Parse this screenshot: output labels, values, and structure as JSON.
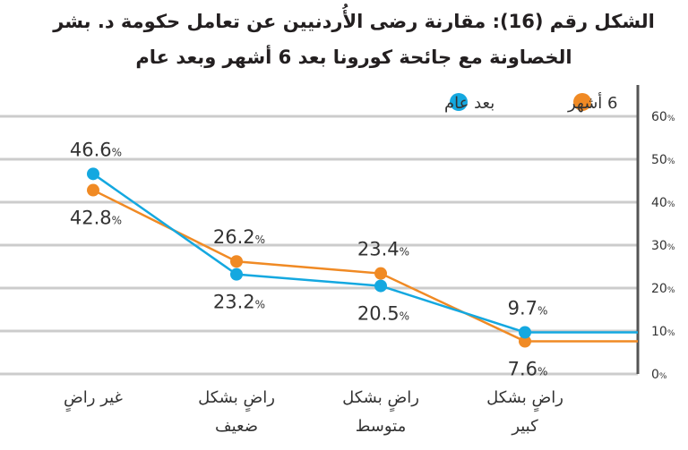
{
  "chart_data": {
    "type": "line",
    "title": [
      "الشكل رقم (16): مقارنة رضى الأُردنيين عن تعامل حكومة د. بشر",
      "الخصاونة مع جائحة كورونا بعد 6 أشهر وبعد عام"
    ],
    "categories": [
      [
        "غير راضٍ"
      ],
      [
        "راضٍ بشكل",
        "ضعيف"
      ],
      [
        "راضٍ بشكل",
        "متوسط"
      ],
      [
        "راضٍ بشكل",
        "كبير"
      ]
    ],
    "series": [
      {
        "name": "6 أشهر",
        "color": "#f08a24",
        "values": [
          42.8,
          26.2,
          23.4,
          7.6
        ]
      },
      {
        "name": "بعد عام",
        "color": "#14a8e0",
        "values": [
          46.6,
          23.2,
          20.5,
          9.7
        ]
      }
    ],
    "value_labels": {
      "6 أشهر": [
        "42.8",
        "26.2",
        "23.4",
        "7.6"
      ],
      "بعد عام": [
        "46.6",
        "23.2",
        "20.5",
        "9.7"
      ]
    },
    "unit": "%",
    "yticks": [
      "0",
      "10",
      "20",
      "30",
      "40",
      "50",
      "60"
    ],
    "ylim": [
      0,
      60
    ],
    "y_axis_side": "right",
    "grid": true,
    "legend": "top",
    "grid_color": "#cccccc"
  }
}
